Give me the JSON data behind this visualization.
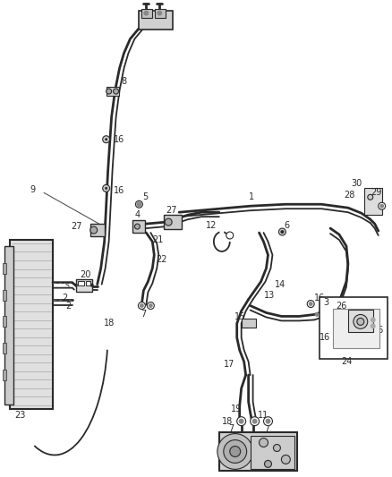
{
  "background": "#ffffff",
  "line_color": "#2a2a2a",
  "label_color": "#2a2a2a",
  "label_fontsize": 7.0,
  "lw_thick": 2.0,
  "lw_med": 1.3,
  "lw_thin": 0.8
}
